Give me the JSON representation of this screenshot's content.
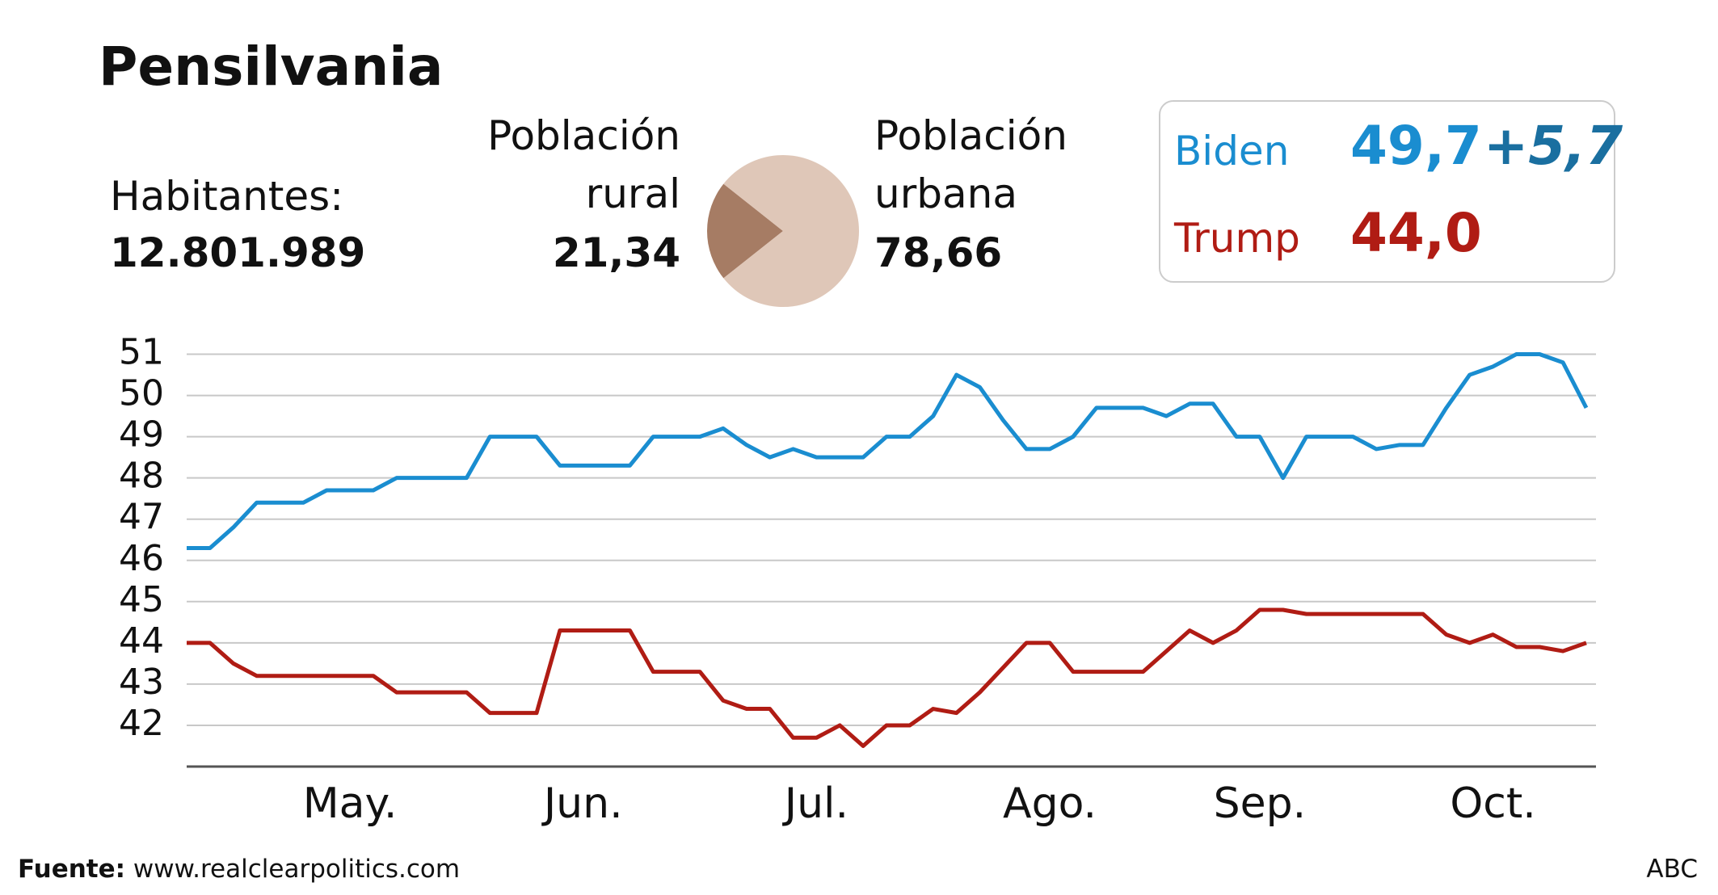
{
  "header": {
    "title": "Pensilvania",
    "inhabitants_label": "Habitantes:",
    "inhabitants_value": "12.801.989"
  },
  "results": [
    {
      "name": "Biden",
      "value": "49,7",
      "lead": "+5,7"
    },
    {
      "name": "Trump",
      "value": "44,0"
    }
  ],
  "chart_data": [
    {
      "type": "pie",
      "categories": [
        "Población rural",
        "Población urbana"
      ],
      "values": [
        21.34,
        78.66
      ],
      "value_labels": [
        "21,34",
        "78,66"
      ],
      "colors": [
        "#a67c64",
        "#dfc7b8"
      ]
    },
    {
      "type": "line",
      "categories": [
        null,
        null,
        null,
        null,
        null,
        null,
        null,
        "May.",
        null,
        null,
        null,
        null,
        null,
        null,
        null,
        null,
        null,
        "Jun.",
        null,
        null,
        null,
        null,
        null,
        null,
        null,
        null,
        null,
        "Jul.",
        null,
        null,
        null,
        null,
        null,
        null,
        null,
        null,
        null,
        "Ago.",
        null,
        null,
        null,
        null,
        null,
        null,
        null,
        null,
        "Sep.",
        null,
        null,
        null,
        null,
        null,
        null,
        null,
        null,
        null,
        "Oct.",
        null,
        null,
        null,
        null
      ],
      "series": [
        {
          "name": "Biden",
          "color": "#1a8dd0",
          "values": [
            46.3,
            46.3,
            46.8,
            47.4,
            47.4,
            47.4,
            47.7,
            47.7,
            47.7,
            48.0,
            48.0,
            48.0,
            48.0,
            49.0,
            49.0,
            49.0,
            48.3,
            48.3,
            48.3,
            48.3,
            49.0,
            49.0,
            49.0,
            49.2,
            48.8,
            48.5,
            48.7,
            48.5,
            48.5,
            48.5,
            49.0,
            49.0,
            49.5,
            50.5,
            50.2,
            49.4,
            48.7,
            48.7,
            49.0,
            49.7,
            49.7,
            49.7,
            49.5,
            49.8,
            49.8,
            49.0,
            49.0,
            48.0,
            49.0,
            49.0,
            49.0,
            48.7,
            48.8,
            48.8,
            49.7,
            50.5,
            50.7,
            51.0,
            51.0,
            50.8,
            49.7
          ]
        },
        {
          "name": "Trump",
          "color": "#b01c14",
          "values": [
            44.0,
            44.0,
            43.5,
            43.2,
            43.2,
            43.2,
            43.2,
            43.2,
            43.2,
            42.8,
            42.8,
            42.8,
            42.8,
            42.3,
            42.3,
            42.3,
            44.3,
            44.3,
            44.3,
            44.3,
            43.3,
            43.3,
            43.3,
            42.6,
            42.4,
            42.4,
            41.7,
            41.7,
            42.0,
            41.5,
            42.0,
            42.0,
            42.4,
            42.3,
            42.8,
            43.4,
            44.0,
            44.0,
            43.3,
            43.3,
            43.3,
            43.3,
            43.8,
            44.3,
            44.0,
            44.3,
            44.8,
            44.8,
            44.7,
            44.7,
            44.7,
            44.7,
            44.7,
            44.7,
            44.2,
            44.0,
            44.2,
            43.9,
            43.9,
            43.8,
            44.0
          ]
        }
      ],
      "ylim": [
        41,
        51.5
      ],
      "yticks": [
        42,
        43,
        44,
        45,
        46,
        47,
        48,
        49,
        50,
        51
      ],
      "grid": true
    }
  ],
  "source": {
    "label": "Fuente:",
    "url": "www.realclearpolitics.com",
    "credit": "ABC"
  }
}
